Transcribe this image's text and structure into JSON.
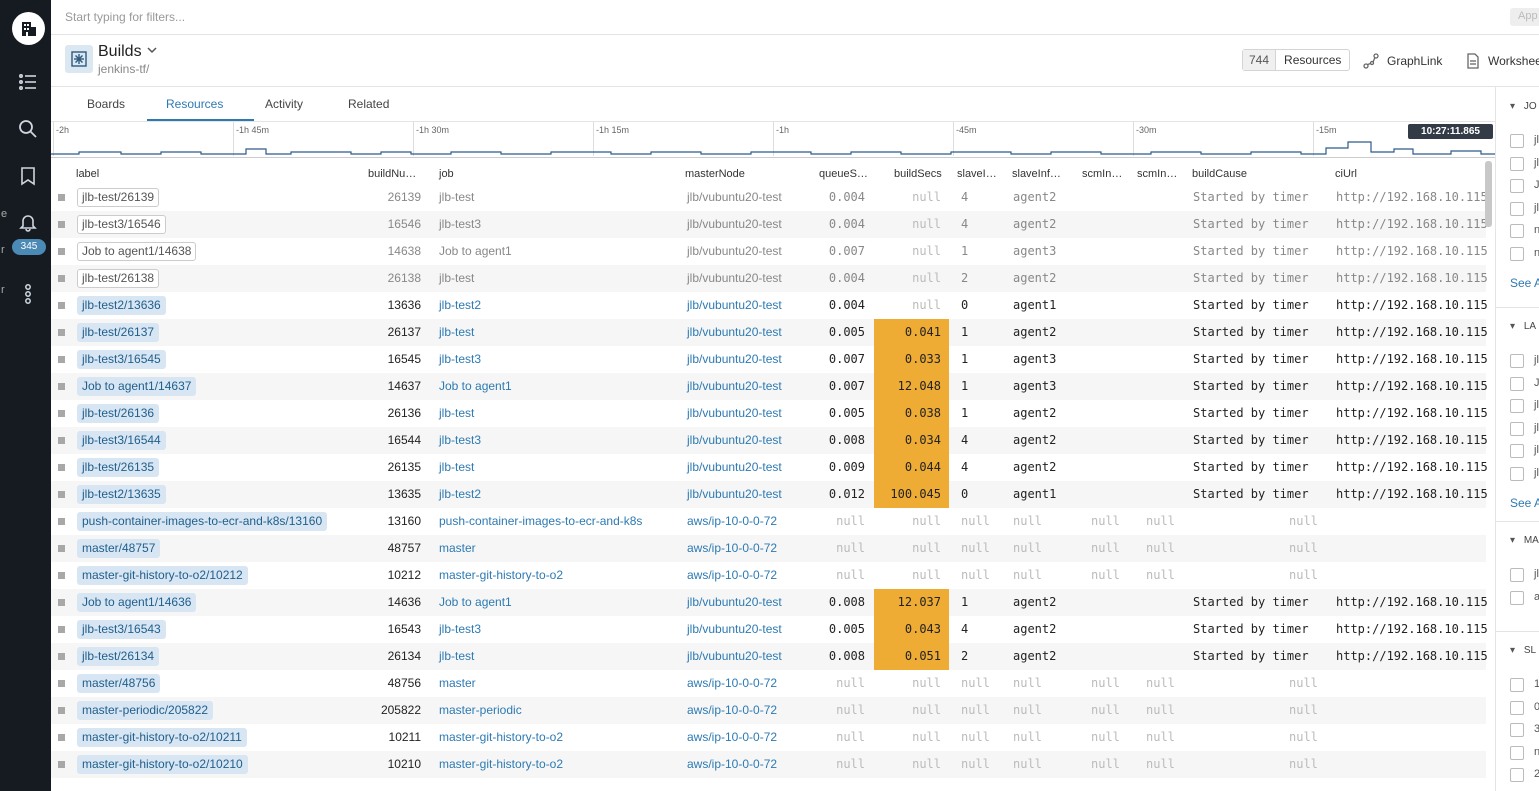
{
  "nav": {
    "badge": "345",
    "frag1": "e",
    "frag2": "r",
    "frag3": "r"
  },
  "filter": {
    "placeholder": "Start typing for filters...",
    "apply": "App"
  },
  "header": {
    "title": "Builds",
    "subtitle": "jenkins-tf/",
    "count": "744",
    "resources": "Resources",
    "graphlink": "GraphLink",
    "worksheet": "Workshee"
  },
  "tabs": [
    "Boards",
    "Resources",
    "Activity",
    "Related"
  ],
  "timeline": {
    "ticks": [
      "-2h",
      "-1h 45m",
      "-1h 30m",
      "-1h 15m",
      "-1h",
      "-45m",
      "-30m",
      "-15m"
    ],
    "now": "10:27:11.865"
  },
  "columns": [
    "label",
    "buildNu…",
    "job",
    "masterNode",
    "queueS…",
    "buildSecs",
    "slaveI…",
    "slaveInf…",
    "scmIn…",
    "scmIn…",
    "buildCause",
    "ciUrl"
  ],
  "rows": [
    {
      "label": "jlb-test/26139",
      "num": "26139",
      "job": "jlb-test",
      "master": "jlb/vubuntu20-test",
      "queue": "0.004",
      "build": "null",
      "slave": "4",
      "agent": "agent2",
      "scm1": "",
      "scm2": "",
      "cause": "Started by timer",
      "url": "http://192.168.10.115",
      "style": "stale"
    },
    {
      "label": "jlb-test3/16546",
      "num": "16546",
      "job": "jlb-test3",
      "master": "jlb/vubuntu20-test",
      "queue": "0.004",
      "build": "null",
      "slave": "4",
      "agent": "agent2",
      "scm1": "",
      "scm2": "",
      "cause": "Started by timer",
      "url": "http://192.168.10.115",
      "style": "stale"
    },
    {
      "label": "Job to agent1/14638",
      "num": "14638",
      "job": "Job to agent1",
      "master": "jlb/vubuntu20-test",
      "queue": "0.007",
      "build": "null",
      "slave": "1",
      "agent": "agent3",
      "scm1": "",
      "scm2": "",
      "cause": "Started by timer",
      "url": "http://192.168.10.115",
      "style": "stale"
    },
    {
      "label": "jlb-test/26138",
      "num": "26138",
      "job": "jlb-test",
      "master": "jlb/vubuntu20-test",
      "queue": "0.004",
      "build": "null",
      "slave": "2",
      "agent": "agent2",
      "scm1": "",
      "scm2": "",
      "cause": "Started by timer",
      "url": "http://192.168.10.115",
      "style": "stale"
    },
    {
      "label": "jlb-test2/13636",
      "num": "13636",
      "job": "jlb-test2",
      "master": "jlb/vubuntu20-test",
      "queue": "0.004",
      "build": "null",
      "slave": "0",
      "agent": "agent1",
      "scm1": "",
      "scm2": "",
      "cause": "Started by timer",
      "url": "http://192.168.10.115",
      "style": "live"
    },
    {
      "label": "jlb-test/26137",
      "num": "26137",
      "job": "jlb-test",
      "master": "jlb/vubuntu20-test",
      "queue": "0.005",
      "build": "0.041",
      "slave": "1",
      "agent": "agent2",
      "scm1": "",
      "scm2": "",
      "cause": "Started by timer",
      "url": "http://192.168.10.115",
      "style": "live"
    },
    {
      "label": "jlb-test3/16545",
      "num": "16545",
      "job": "jlb-test3",
      "master": "jlb/vubuntu20-test",
      "queue": "0.007",
      "build": "0.033",
      "slave": "1",
      "agent": "agent3",
      "scm1": "",
      "scm2": "",
      "cause": "Started by timer",
      "url": "http://192.168.10.115",
      "style": "live"
    },
    {
      "label": "Job to agent1/14637",
      "num": "14637",
      "job": "Job to agent1",
      "master": "jlb/vubuntu20-test",
      "queue": "0.007",
      "build": "12.048",
      "slave": "1",
      "agent": "agent3",
      "scm1": "",
      "scm2": "",
      "cause": "Started by timer",
      "url": "http://192.168.10.115",
      "style": "live"
    },
    {
      "label": "jlb-test/26136",
      "num": "26136",
      "job": "jlb-test",
      "master": "jlb/vubuntu20-test",
      "queue": "0.005",
      "build": "0.038",
      "slave": "1",
      "agent": "agent2",
      "scm1": "",
      "scm2": "",
      "cause": "Started by timer",
      "url": "http://192.168.10.115",
      "style": "live"
    },
    {
      "label": "jlb-test3/16544",
      "num": "16544",
      "job": "jlb-test3",
      "master": "jlb/vubuntu20-test",
      "queue": "0.008",
      "build": "0.034",
      "slave": "4",
      "agent": "agent2",
      "scm1": "",
      "scm2": "",
      "cause": "Started by timer",
      "url": "http://192.168.10.115",
      "style": "live"
    },
    {
      "label": "jlb-test/26135",
      "num": "26135",
      "job": "jlb-test",
      "master": "jlb/vubuntu20-test",
      "queue": "0.009",
      "build": "0.044",
      "slave": "4",
      "agent": "agent2",
      "scm1": "",
      "scm2": "",
      "cause": "Started by timer",
      "url": "http://192.168.10.115",
      "style": "live"
    },
    {
      "label": "jlb-test2/13635",
      "num": "13635",
      "job": "jlb-test2",
      "master": "jlb/vubuntu20-test",
      "queue": "0.012",
      "build": "100.045",
      "slave": "0",
      "agent": "agent1",
      "scm1": "",
      "scm2": "",
      "cause": "Started by timer",
      "url": "http://192.168.10.115",
      "style": "live"
    },
    {
      "label": "push-container-images-to-ecr-and-k8s/13160",
      "num": "13160",
      "job": "push-container-images-to-ecr-and-k8s",
      "master": "aws/ip-10-0-0-72",
      "queue": "null",
      "build": "null",
      "slave": "null",
      "agent": "null",
      "scm1": "null",
      "scm2": "null",
      "cause": "",
      "url": "null",
      "style": "live"
    },
    {
      "label": "master/48757",
      "num": "48757",
      "job": "master",
      "master": "aws/ip-10-0-0-72",
      "queue": "null",
      "build": "null",
      "slave": "null",
      "agent": "null",
      "scm1": "null",
      "scm2": "null",
      "cause": "",
      "url": "null",
      "style": "live"
    },
    {
      "label": "master-git-history-to-o2/10212",
      "num": "10212",
      "job": "master-git-history-to-o2",
      "master": "aws/ip-10-0-0-72",
      "queue": "null",
      "build": "null",
      "slave": "null",
      "agent": "null",
      "scm1": "null",
      "scm2": "null",
      "cause": "",
      "url": "null",
      "style": "live"
    },
    {
      "label": "Job to agent1/14636",
      "num": "14636",
      "job": "Job to agent1",
      "master": "jlb/vubuntu20-test",
      "queue": "0.008",
      "build": "12.037",
      "slave": "1",
      "agent": "agent2",
      "scm1": "",
      "scm2": "",
      "cause": "Started by timer",
      "url": "http://192.168.10.115",
      "style": "live"
    },
    {
      "label": "jlb-test3/16543",
      "num": "16543",
      "job": "jlb-test3",
      "master": "jlb/vubuntu20-test",
      "queue": "0.005",
      "build": "0.043",
      "slave": "4",
      "agent": "agent2",
      "scm1": "",
      "scm2": "",
      "cause": "Started by timer",
      "url": "http://192.168.10.115",
      "style": "live"
    },
    {
      "label": "jlb-test/26134",
      "num": "26134",
      "job": "jlb-test",
      "master": "jlb/vubuntu20-test",
      "queue": "0.008",
      "build": "0.051",
      "slave": "2",
      "agent": "agent2",
      "scm1": "",
      "scm2": "",
      "cause": "Started by timer",
      "url": "http://192.168.10.115",
      "style": "live"
    },
    {
      "label": "master/48756",
      "num": "48756",
      "job": "master",
      "master": "aws/ip-10-0-0-72",
      "queue": "null",
      "build": "null",
      "slave": "null",
      "agent": "null",
      "scm1": "null",
      "scm2": "null",
      "cause": "",
      "url": "null",
      "style": "live"
    },
    {
      "label": "master-periodic/205822",
      "num": "205822",
      "job": "master-periodic",
      "master": "aws/ip-10-0-0-72",
      "queue": "null",
      "build": "null",
      "slave": "null",
      "agent": "null",
      "scm1": "null",
      "scm2": "null",
      "cause": "",
      "url": "null",
      "style": "live"
    },
    {
      "label": "master-git-history-to-o2/10211",
      "num": "10211",
      "job": "master-git-history-to-o2",
      "master": "aws/ip-10-0-0-72",
      "queue": "null",
      "build": "null",
      "slave": "null",
      "agent": "null",
      "scm1": "null",
      "scm2": "null",
      "cause": "",
      "url": "null",
      "style": "live"
    },
    {
      "label": "master-git-history-to-o2/10210",
      "num": "10210",
      "job": "master-git-history-to-o2",
      "master": "aws/ip-10-0-0-72",
      "queue": "null",
      "build": "null",
      "slave": "null",
      "agent": "null",
      "scm1": "null",
      "scm2": "null",
      "cause": "",
      "url": "null",
      "style": "live"
    }
  ],
  "right_panel": {
    "sections": [
      {
        "title": "JO",
        "items": [
          "jl",
          "jl",
          "J",
          "jl",
          "n",
          "n"
        ],
        "see": "See A"
      },
      {
        "title": "LA",
        "items": [
          "jl",
          "J",
          "jl",
          "jl",
          "jl",
          "jl"
        ],
        "see": "See A"
      },
      {
        "title": "MA",
        "items": [
          "jl",
          "a"
        ],
        "see": ""
      },
      {
        "title": "SL",
        "items": [
          "1",
          "0",
          "3",
          "n",
          "2"
        ],
        "see": ""
      }
    ]
  },
  "colors": {
    "accent": "#2d7ab3",
    "highlight": "#efac35",
    "nav_bg": "#161b22"
  }
}
